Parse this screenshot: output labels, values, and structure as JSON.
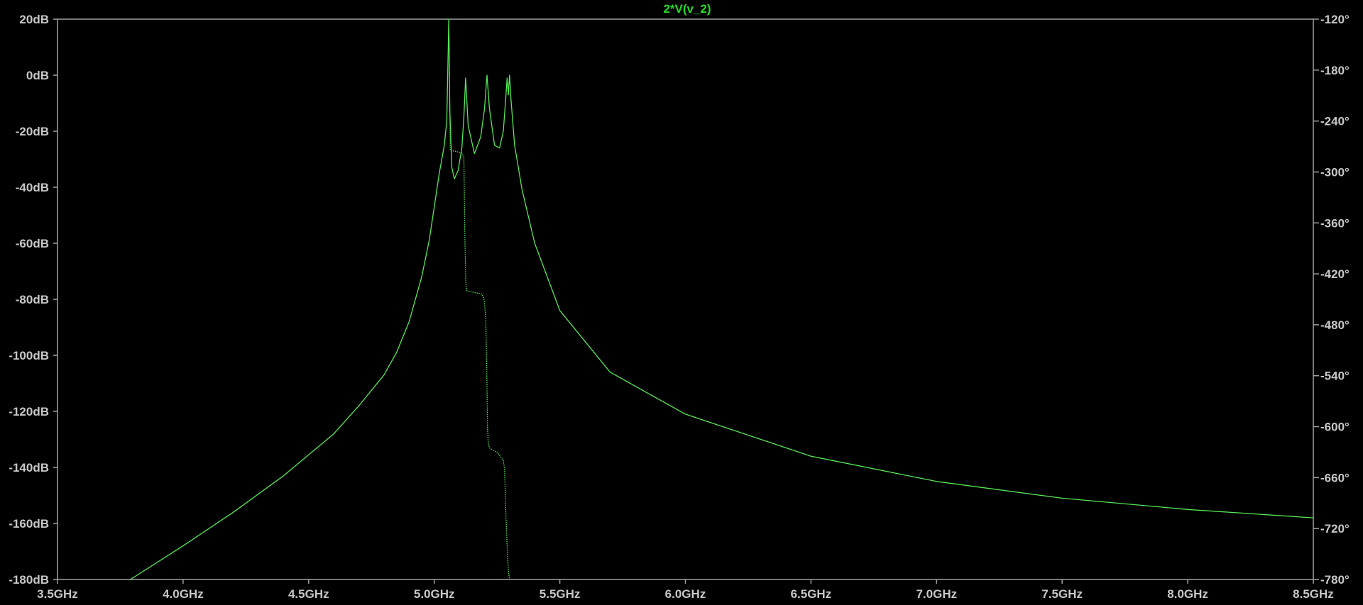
{
  "chart_data": {
    "type": "line",
    "title": "2*V(v_2)",
    "background": "#000000",
    "axis_color": "#a0a0a0",
    "trace_color": "#55e855",
    "x_axis": {
      "label": "",
      "range_ghz": [
        3.5,
        8.5
      ],
      "ticks": [
        3.5,
        4.0,
        4.5,
        5.0,
        5.5,
        6.0,
        6.5,
        7.0,
        7.5,
        8.0,
        8.5
      ],
      "tick_labels": [
        "3.5GHz",
        "4.0GHz",
        "4.5GHz",
        "5.0GHz",
        "5.5GHz",
        "6.0GHz",
        "6.5GHz",
        "7.0GHz",
        "7.5GHz",
        "8.0GHz",
        "8.5GHz"
      ]
    },
    "y_left_axis": {
      "label": "",
      "unit": "dB",
      "range": [
        -180,
        20
      ],
      "ticks": [
        20,
        0,
        -20,
        -40,
        -60,
        -80,
        -100,
        -120,
        -140,
        -160,
        -180
      ],
      "tick_labels": [
        "20dB",
        "0dB",
        "-20dB",
        "-40dB",
        "-60dB",
        "-80dB",
        "-100dB",
        "-120dB",
        "-140dB",
        "-160dB",
        "-180dB"
      ]
    },
    "y_right_axis": {
      "label": "",
      "unit": "°",
      "range": [
        -780,
        -120
      ],
      "ticks": [
        -120,
        -180,
        -240,
        -300,
        -360,
        -420,
        -480,
        -540,
        -600,
        -660,
        -720,
        -780
      ],
      "tick_labels": [
        "-120°",
        "-180°",
        "-240°",
        "-300°",
        "-360°",
        "-420°",
        "-480°",
        "-540°",
        "-600°",
        "-660°",
        "-720°",
        "-780°"
      ]
    },
    "grid": false,
    "series": [
      {
        "name": "magnitude",
        "style": "solid",
        "axis": "left",
        "x_ghz": [
          3.79,
          4.0,
          4.2,
          4.4,
          4.6,
          4.7,
          4.8,
          4.85,
          4.9,
          4.95,
          4.98,
          5.0,
          5.02,
          5.04,
          5.05,
          5.058,
          5.062,
          5.07,
          5.08,
          5.095,
          5.11,
          5.118,
          5.125,
          5.135,
          5.16,
          5.185,
          5.2,
          5.21,
          5.22,
          5.24,
          5.26,
          5.275,
          5.285,
          5.29,
          5.295,
          5.3,
          5.305,
          5.32,
          5.35,
          5.4,
          5.5,
          5.7,
          6.0,
          6.5,
          7.0,
          7.5,
          8.0,
          8.5
        ],
        "y_db": [
          -180,
          -168,
          -156,
          -143,
          -128,
          -118,
          -107,
          -99,
          -88,
          -72,
          -59,
          -47,
          -35,
          -25,
          -16,
          20,
          -12,
          -33,
          -37,
          -34,
          -26,
          -15,
          -1,
          -18,
          -28,
          -22,
          -12,
          0,
          -12,
          -25,
          -26,
          -20,
          -8,
          -1,
          -7,
          0,
          -8,
          -25,
          -41,
          -60,
          -84,
          -106,
          -121,
          -136,
          -145,
          -151,
          -155,
          -158
        ]
      },
      {
        "name": "phase",
        "style": "dotted",
        "axis": "right",
        "x_ghz": [
          5.05,
          5.058,
          5.064,
          5.07,
          5.09,
          5.11,
          5.118,
          5.122,
          5.126,
          5.13,
          5.16,
          5.19,
          5.198,
          5.205,
          5.21,
          5.212,
          5.215,
          5.22,
          5.23,
          5.25,
          5.265,
          5.275,
          5.28,
          5.285,
          5.29,
          5.295,
          5.3
        ],
        "y_deg": [
          -120,
          -120,
          -275,
          -275,
          -276,
          -278,
          -282,
          -380,
          -432,
          -440,
          -442,
          -444,
          -450,
          -470,
          -550,
          -600,
          -620,
          -625,
          -627,
          -630,
          -636,
          -640,
          -650,
          -700,
          -740,
          -770,
          -780
        ]
      }
    ]
  }
}
